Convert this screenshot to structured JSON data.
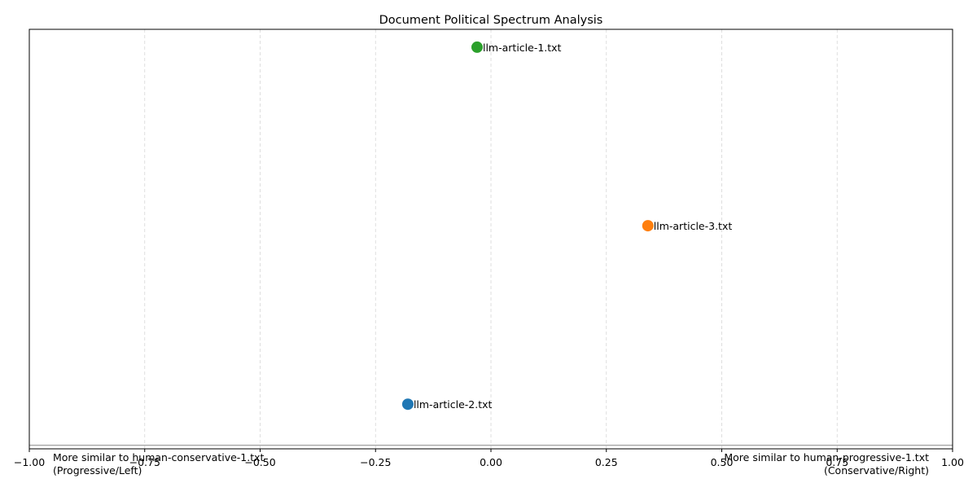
{
  "chart_data": {
    "type": "scatter",
    "title": "Document Political Spectrum Analysis",
    "xlim": [
      -1.0,
      1.0
    ],
    "ylim": [
      -0.25,
      2.1
    ],
    "xticks": [
      -1.0,
      -0.75,
      -0.5,
      -0.25,
      0.0,
      0.25,
      0.5,
      0.75,
      1.0
    ],
    "xtick_labels": [
      "−1.00",
      "−0.75",
      "−0.50",
      "−0.25",
      "0.00",
      "0.25",
      "0.50",
      "0.75",
      "1.00"
    ],
    "grid": "vertical dashed",
    "baseline_y": -0.23,
    "points": [
      {
        "label": "llm-article-2.txt",
        "x": -0.18,
        "y": 0.0,
        "color": "#1f77b4"
      },
      {
        "label": "llm-article-3.txt",
        "x": 0.34,
        "y": 1.0,
        "color": "#ff7f0e"
      },
      {
        "label": "llm-article-1.txt",
        "x": -0.03,
        "y": 2.0,
        "color": "#2ca02c"
      }
    ],
    "annotations": {
      "left_line1": "More similar to human-conservative-1.txt",
      "left_line2": "(Progressive/Left)",
      "right_line1": "More similar to human-progressive-1.txt",
      "right_line2": "(Conservative/Right)"
    }
  }
}
